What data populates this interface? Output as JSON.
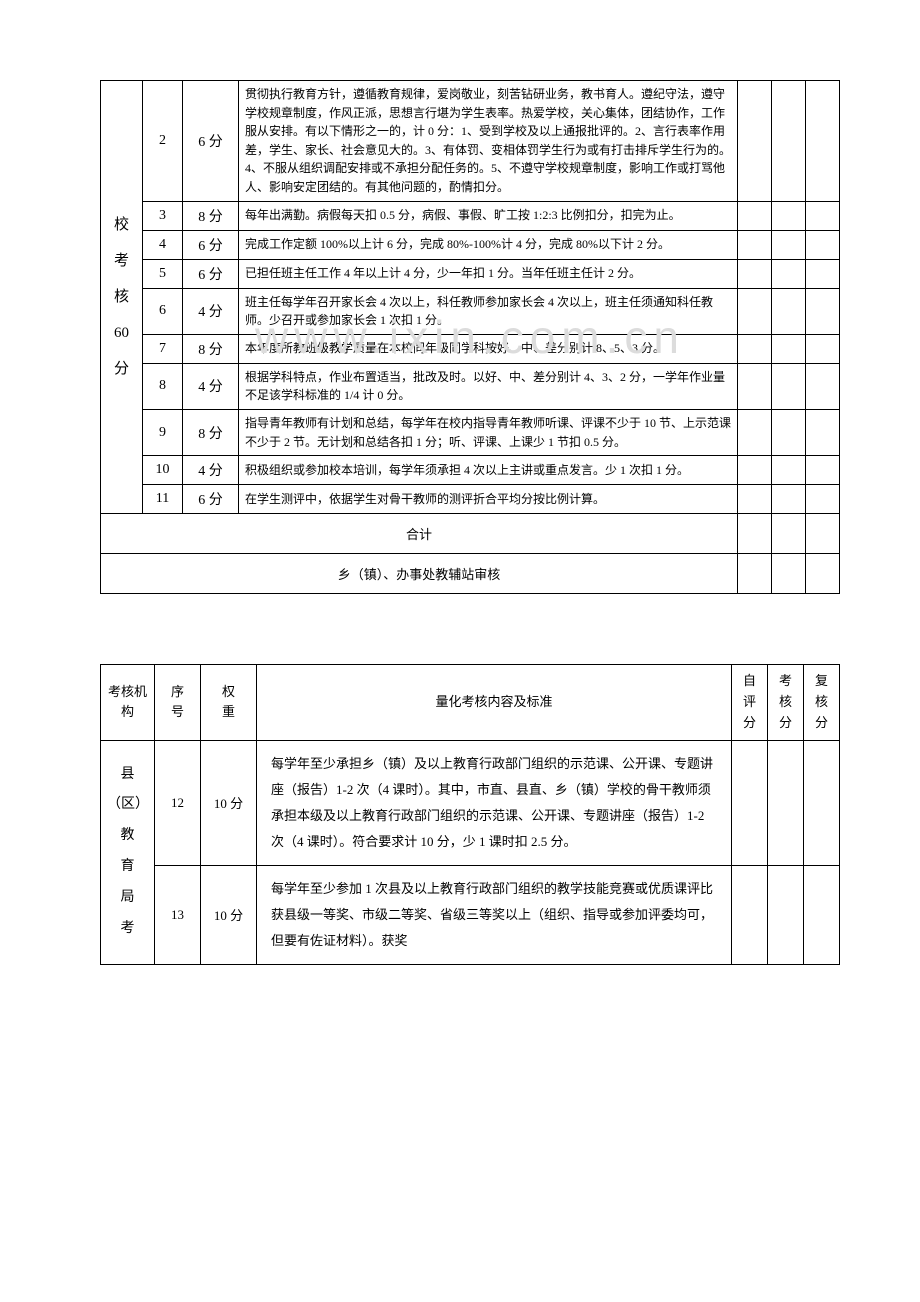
{
  "table1": {
    "org_label_lines": [
      "校",
      "考",
      "核",
      "60",
      "分"
    ],
    "rows": [
      {
        "seq": "2",
        "weight": "6 分",
        "content": "贯彻执行教育方针，遵循教育规律，爱岗敬业，刻苦钻研业务，教书育人。遵纪守法，遵守学校规章制度，作风正派，思想言行堪为学生表率。热爱学校，关心集体，团结协作，工作服从安排。有以下情形之一的，计 0 分：1、受到学校及以上通报批评的。2、言行表率作用差，学生、家长、社会意见大的。3、有体罚、变相体罚学生行为或有打击排斥学生行为的。4、不服从组织调配安排或不承担分配任务的。5、不遵守学校规章制度，影响工作或打骂他人、影响安定团结的。有其他问题的，酌情扣分。"
      },
      {
        "seq": "3",
        "weight": "8 分",
        "content": "每年出满勤。病假每天扣 0.5 分，病假、事假、旷工按 1:2:3 比例扣分，扣完为止。"
      },
      {
        "seq": "4",
        "weight": "6 分",
        "content": "完成工作定额 100%以上计 6 分，完成 80%-100%计 4 分，完成 80%以下计 2 分。"
      },
      {
        "seq": "5",
        "weight": "6 分",
        "content": "已担任班主任工作 4 年以上计 4 分，少一年扣 1 分。当年任班主任计 2 分。"
      },
      {
        "seq": "6",
        "weight": "4 分",
        "content": "班主任每学年召开家长会 4 次以上，科任教师参加家长会 4 次以上，班主任须通知科任教师。少召开或参加家长会 1 次扣 1 分。"
      },
      {
        "seq": "7",
        "weight": "8 分",
        "content": "本年度所教班级教学质量在本校同年级同学科按好、中、差分别计 8、5、3 分。"
      },
      {
        "seq": "8",
        "weight": "4 分",
        "content": "根据学科特点，作业布置适当，批改及时。以好、中、差分别计 4、3、2 分，一学年作业量不足该学科标准的 1/4 计 0 分。"
      },
      {
        "seq": "9",
        "weight": "8 分",
        "content": "指导青年教师有计划和总结，每学年在校内指导青年教师听课、评课不少于 10 节、上示范课不少于 2 节。无计划和总结各扣 1 分；听、评课、上课少 1 节扣 0.5 分。"
      },
      {
        "seq": "10",
        "weight": "4 分",
        "content": "积极组织或参加校本培训，每学年须承担 4 次以上主讲或重点发言。少 1 次扣 1 分。"
      },
      {
        "seq": "11",
        "weight": "6 分",
        "content": "在学生测评中，依据学生对骨干教师的测评折合平均分按比例计算。"
      }
    ],
    "total_label": "合计",
    "review_label": "乡（镇）、办事处教辅站审核"
  },
  "table2": {
    "headers": {
      "org": "考核机构",
      "seq": "序号",
      "weight": "权重",
      "content": "量化考核内容及标准",
      "self": "自评分",
      "assess": "考核分",
      "recheck": "复核分"
    },
    "org_label_lines": [
      "县",
      "（区）",
      "教",
      "育",
      "局",
      "考"
    ],
    "rows": [
      {
        "seq": "12",
        "weight": "10 分",
        "content": "每学年至少承担乡（镇）及以上教育行政部门组织的示范课、公开课、专题讲座（报告）1-2 次（4 课时）。其中，市直、县直、乡（镇）学校的骨干教师须承担本级及以上教育行政部门组织的示范课、公开课、专题讲座（报告）1-2 次（4 课时）。符合要求计 10 分，少 1 课时扣 2.5 分。"
      },
      {
        "seq": "13",
        "weight": "10 分",
        "content": "每学年至少参加 1 次县及以上教育行政部门组织的教学技能竞赛或优质课评比获县级一等奖、市级二等奖、省级三等奖以上（组织、指导或参加评委均可，但要有佐证材料）。获奖"
      }
    ]
  },
  "watermark": "www.ixin.com.cn"
}
